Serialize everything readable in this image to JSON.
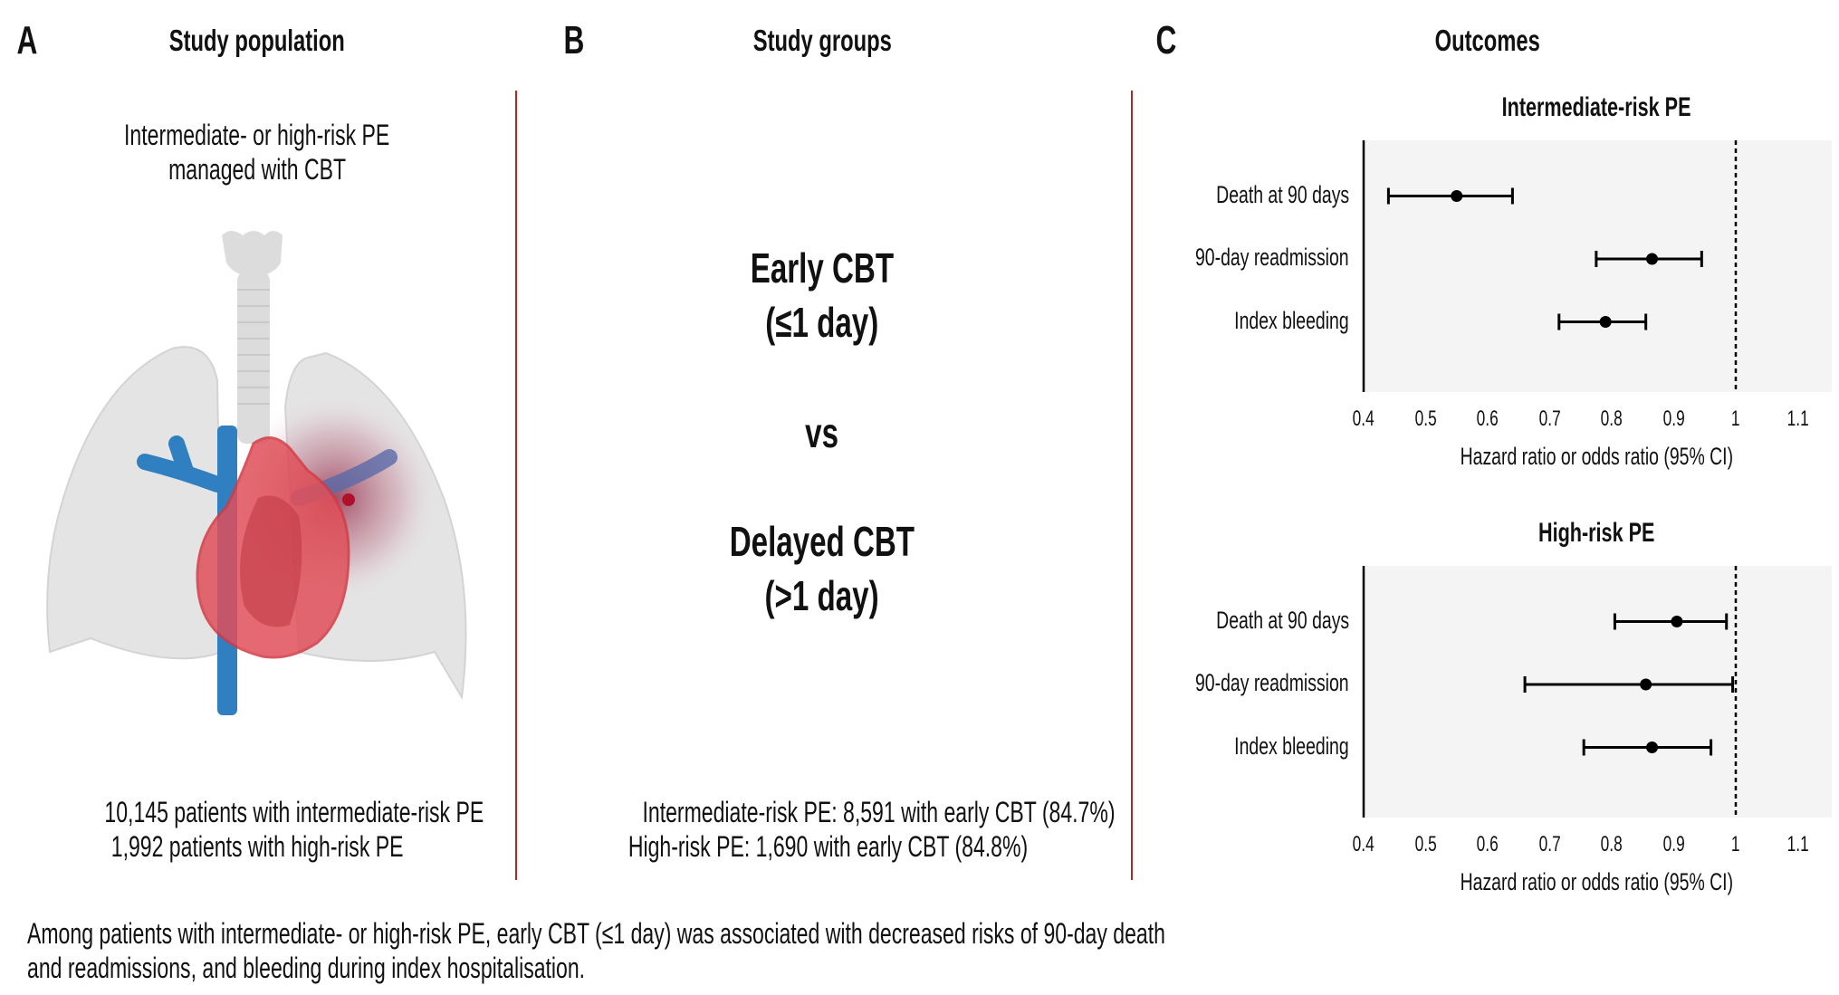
{
  "panels": {
    "a": {
      "letter": "A",
      "title": "Study population",
      "subtitle_lines": [
        "Intermediate- or high-risk PE",
        "managed with CBT"
      ],
      "illustration": "lungs-heart-illustration",
      "count_lines": [
        "10,145 patients with intermediate-risk PE",
        "1,992 patients with high-risk PE"
      ]
    },
    "b": {
      "letter": "B",
      "title": "Study groups",
      "group1": [
        "Early CBT",
        "(≤1 day)"
      ],
      "vs": "vs",
      "group2": [
        "Delayed CBT",
        "(>1 day)"
      ],
      "count_lines": [
        "Intermediate-risk PE: 8,591 with early CBT (84.7%)",
        "High-risk PE: 1,690 with early CBT (84.8%)"
      ]
    },
    "c": {
      "letter": "C",
      "title": "Outcomes"
    }
  },
  "colors": {
    "divider": "#b0282c",
    "plot_bg": "#f4f4f4",
    "mark": "#000000"
  },
  "chart_data": [
    {
      "type": "forest",
      "title": "Intermediate-risk PE",
      "xlabel": "Hazard ratio or odds ratio (95% CI)",
      "xlim": [
        0.4,
        1.15
      ],
      "xticks": [
        "0.4",
        "0.5",
        "0.6",
        "0.7",
        "0.8",
        "0.9",
        "1",
        "1.1"
      ],
      "reference_line": 1,
      "rows": [
        {
          "label": "Death at 90 days",
          "estimate": 0.55,
          "lower": 0.44,
          "upper": 0.64
        },
        {
          "label": "90-day readmission",
          "estimate": 0.865,
          "lower": 0.775,
          "upper": 0.945
        },
        {
          "label": "Index bleeding",
          "estimate": 0.79,
          "lower": 0.715,
          "upper": 0.855
        }
      ]
    },
    {
      "type": "forest",
      "title": "High-risk PE",
      "xlabel": "Hazard ratio or odds ratio (95% CI)",
      "xlim": [
        0.4,
        1.15
      ],
      "xticks": [
        "0.4",
        "0.5",
        "0.6",
        "0.7",
        "0.8",
        "0.9",
        "1",
        "1.1"
      ],
      "reference_line": 1,
      "rows": [
        {
          "label": "Death at 90 days",
          "estimate": 0.905,
          "lower": 0.805,
          "upper": 0.985
        },
        {
          "label": "90-day readmission",
          "estimate": 0.855,
          "lower": 0.66,
          "upper": 0.995
        },
        {
          "label": "Index bleeding",
          "estimate": 0.865,
          "lower": 0.755,
          "upper": 0.96
        }
      ]
    }
  ],
  "footer_lines": [
    "Among patients with intermediate- or high-risk PE, early CBT (≤1 day) was associated with decreased risks of 90-day death",
    "and readmissions, and bleeding during index hospitalisation."
  ]
}
